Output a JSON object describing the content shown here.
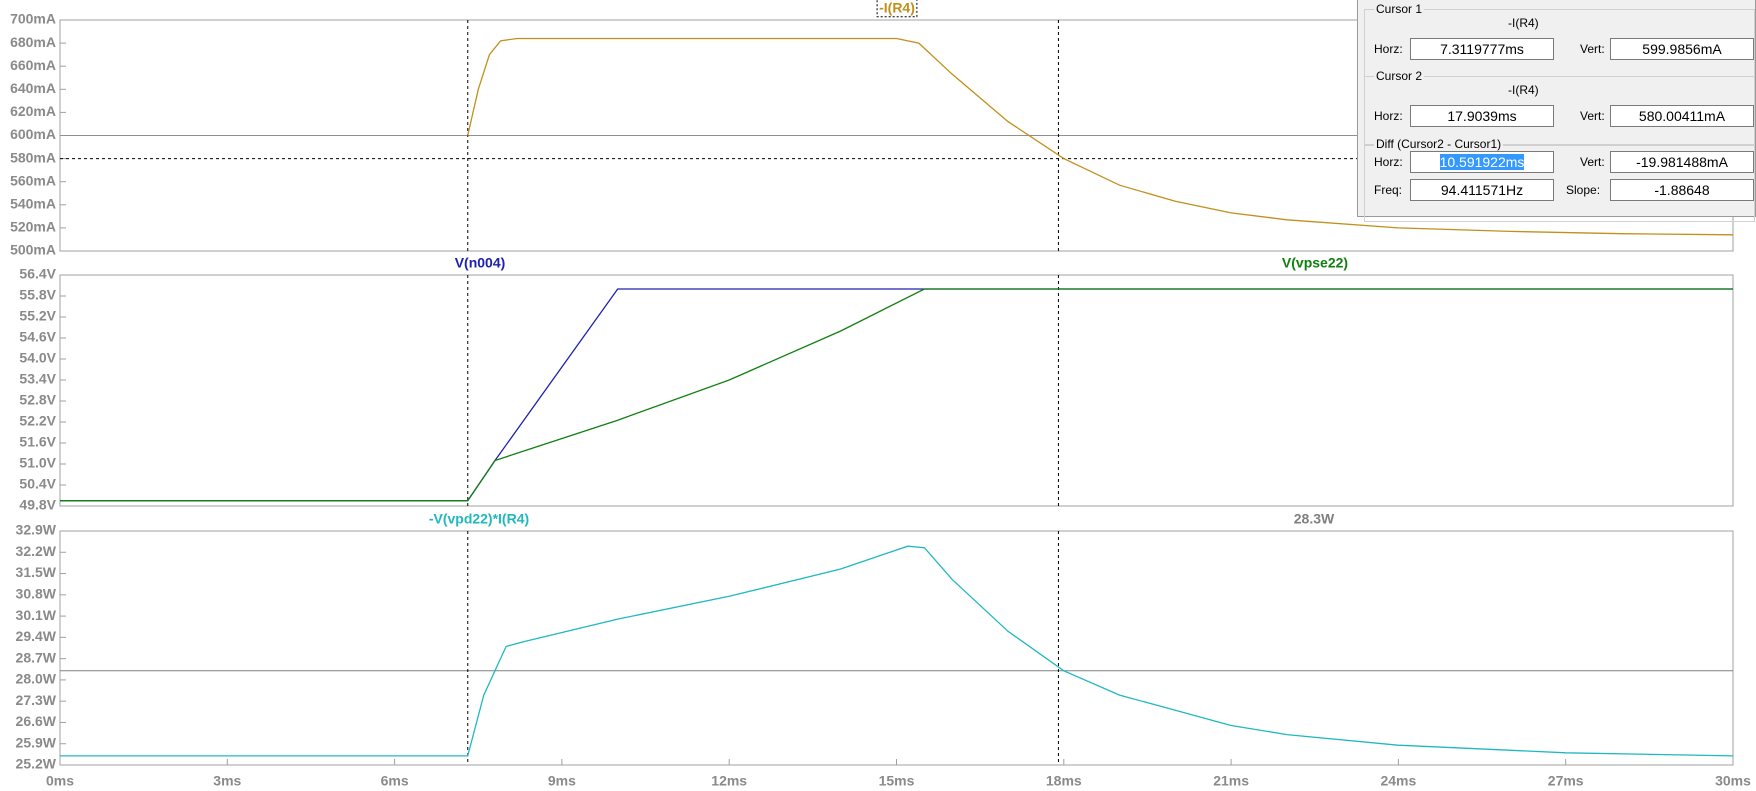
{
  "chart_data": [
    {
      "type": "line",
      "x": [
        7.31,
        7.5,
        7.7,
        7.9,
        8.2,
        10,
        12,
        14,
        15,
        15.4,
        16,
        17,
        18,
        19,
        20,
        21,
        22,
        24,
        26,
        28,
        30
      ],
      "series": [
        {
          "name": "-I(R4)",
          "color": "#c0901a",
          "values": [
            600,
            640,
            670,
            682,
            684,
            684,
            684,
            684,
            684,
            680,
            653,
            612,
            580,
            557,
            543,
            533,
            527,
            520,
            517,
            515,
            514
          ]
        }
      ],
      "xlim": [
        0,
        30
      ],
      "ylim": [
        500,
        700
      ],
      "yticks": [
        {
          "value": 700,
          "label": "700mA"
        },
        {
          "value": 680,
          "label": "680mA"
        },
        {
          "value": 660,
          "label": "660mA"
        },
        {
          "value": 640,
          "label": "640mA"
        },
        {
          "value": 620,
          "label": "620mA"
        },
        {
          "value": 600,
          "label": "600mA"
        },
        {
          "value": 580,
          "label": "580mA"
        },
        {
          "value": 560,
          "label": "560mA"
        },
        {
          "value": 540,
          "label": "540mA"
        },
        {
          "value": 520,
          "label": "520mA"
        },
        {
          "value": 500,
          "label": "500mA"
        }
      ],
      "cursor_x": [
        7.3119777,
        17.9039
      ],
      "cursor_y": [
        599.9856,
        580.00411
      ]
    },
    {
      "type": "line",
      "x": [
        0,
        7.31,
        7.8,
        10,
        12,
        14,
        15.5,
        30
      ],
      "series": [
        {
          "name": "V(n004)",
          "color": "#2020b0",
          "values": [
            49.95,
            49.95,
            51.1,
            56.0,
            56.0,
            56.0,
            56.0,
            56.0
          ]
        },
        {
          "name": "V(vpse22)",
          "color": "#108010",
          "values": [
            49.95,
            49.95,
            51.1,
            52.25,
            53.4,
            54.8,
            56.0,
            56.0
          ]
        }
      ],
      "xlim": [
        0,
        30
      ],
      "ylim": [
        49.8,
        56.4
      ],
      "yticks": [
        {
          "value": 56.4,
          "label": "56.4V"
        },
        {
          "value": 55.8,
          "label": "55.8V"
        },
        {
          "value": 55.2,
          "label": "55.2V"
        },
        {
          "value": 54.6,
          "label": "54.6V"
        },
        {
          "value": 54.0,
          "label": "54.0V"
        },
        {
          "value": 53.4,
          "label": "53.4V"
        },
        {
          "value": 52.8,
          "label": "52.8V"
        },
        {
          "value": 52.2,
          "label": "52.2V"
        },
        {
          "value": 51.6,
          "label": "51.6V"
        },
        {
          "value": 51.0,
          "label": "51.0V"
        },
        {
          "value": 50.4,
          "label": "50.4V"
        },
        {
          "value": 49.8,
          "label": "49.8V"
        }
      ],
      "cursor_x": [
        7.3119777,
        17.9039
      ]
    },
    {
      "type": "line",
      "x": [
        0,
        7.31,
        7.6,
        8.0,
        8.3,
        10,
        12,
        14,
        15.2,
        15.5,
        16,
        17,
        18,
        19,
        20,
        21,
        22,
        24,
        27,
        30
      ],
      "series": [
        {
          "name": "-V(vpd22)*I(R4)",
          "color": "#20b8c0",
          "values": [
            25.5,
            25.5,
            27.5,
            29.1,
            29.25,
            30.0,
            30.75,
            31.65,
            32.4,
            32.35,
            31.3,
            29.6,
            28.3,
            27.5,
            27.0,
            26.5,
            26.2,
            25.85,
            25.6,
            25.5
          ]
        }
      ],
      "xlim": [
        0,
        30
      ],
      "ylim": [
        25.2,
        32.9
      ],
      "yticks": [
        {
          "value": 32.9,
          "label": "32.9W"
        },
        {
          "value": 32.2,
          "label": "32.2W"
        },
        {
          "value": 31.5,
          "label": "31.5W"
        },
        {
          "value": 30.8,
          "label": "30.8W"
        },
        {
          "value": 30.1,
          "label": "30.1W"
        },
        {
          "value": 29.4,
          "label": "29.4W"
        },
        {
          "value": 28.7,
          "label": "28.7W"
        },
        {
          "value": 28.0,
          "label": "28.0W"
        },
        {
          "value": 27.3,
          "label": "27.3W"
        },
        {
          "value": 26.6,
          "label": "26.6W"
        },
        {
          "value": 25.9,
          "label": "25.9W"
        },
        {
          "value": 25.2,
          "label": "25.2W"
        }
      ],
      "xticks": [
        {
          "value": 0,
          "label": "0ms"
        },
        {
          "value": 3,
          "label": "3ms"
        },
        {
          "value": 6,
          "label": "6ms"
        },
        {
          "value": 9,
          "label": "9ms"
        },
        {
          "value": 12,
          "label": "12ms"
        },
        {
          "value": 15,
          "label": "15ms"
        },
        {
          "value": 18,
          "label": "18ms"
        },
        {
          "value": 21,
          "label": "21ms"
        },
        {
          "value": 24,
          "label": "24ms"
        },
        {
          "value": 27,
          "label": "27ms"
        },
        {
          "value": 30,
          "label": "30ms"
        }
      ],
      "cursor_x": [
        7.3119777,
        17.9039
      ],
      "annotation": {
        "value": 28.3,
        "label": "28.3W"
      }
    }
  ],
  "cursor_window": {
    "cursor1": {
      "title": "Cursor 1",
      "trace": "-I(R4)",
      "horz_label": "Horz:",
      "horz": "7.3119777ms",
      "vert_label": "Vert:",
      "vert": "599.9856mA"
    },
    "cursor2": {
      "title": "Cursor 2",
      "trace": "-I(R4)",
      "horz_label": "Horz:",
      "horz": "17.9039ms",
      "vert_label": "Vert:",
      "vert": "580.00411mA"
    },
    "diff": {
      "title": "Diff (Cursor2 - Cursor1)",
      "horz_label": "Horz:",
      "horz": "10.591922ms",
      "vert_label": "Vert:",
      "vert": "-19.981488mA",
      "freq_label": "Freq:",
      "freq": "94.411571Hz",
      "slope_label": "Slope:",
      "slope": "-1.88648"
    }
  }
}
